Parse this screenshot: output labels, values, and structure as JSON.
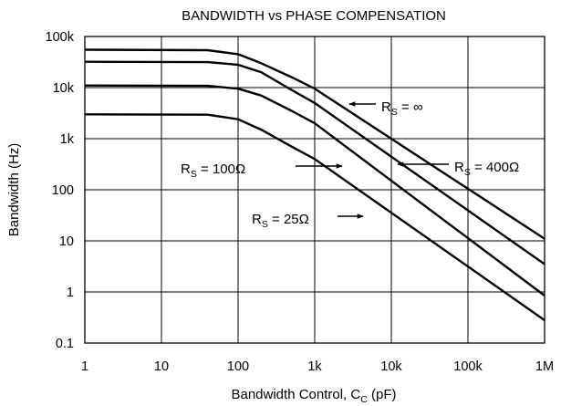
{
  "chart_data": {
    "type": "line",
    "title": "BANDWIDTH vs PHASE COMPENSATION",
    "xlabel": {
      "text": "Bandwidth Control, C",
      "sub": "C",
      "unit": " (pF)"
    },
    "ylabel": "Bandwidth (Hz)",
    "x_scale": "log",
    "y_scale": "log",
    "xlim": [
      1,
      1000000
    ],
    "ylim": [
      0.1,
      100000
    ],
    "grid": true,
    "xticks": [
      {
        "value": 1,
        "label": "1"
      },
      {
        "value": 10,
        "label": "10"
      },
      {
        "value": 100,
        "label": "100"
      },
      {
        "value": 1000,
        "label": "1k"
      },
      {
        "value": 10000,
        "label": "10k"
      },
      {
        "value": 100000,
        "label": "100k"
      },
      {
        "value": 1000000,
        "label": "1M"
      }
    ],
    "yticks": [
      {
        "value": 0.1,
        "label": "0.1"
      },
      {
        "value": 1,
        "label": "1"
      },
      {
        "value": 10,
        "label": "10"
      },
      {
        "value": 100,
        "label": "100"
      },
      {
        "value": 1000,
        "label": "1k"
      },
      {
        "value": 10000,
        "label": "10k"
      },
      {
        "value": 100000,
        "label": "100k"
      }
    ],
    "line_color": "#000000",
    "series": [
      {
        "name": "R_S = ∞",
        "points": [
          [
            1,
            55000
          ],
          [
            40,
            54000
          ],
          [
            100,
            45000
          ],
          [
            200,
            30000
          ],
          [
            500,
            16000
          ],
          [
            1000,
            9500
          ],
          [
            1000000,
            11
          ]
        ]
      },
      {
        "name": "R_S = 400Ω",
        "points": [
          [
            1,
            32000
          ],
          [
            40,
            31500
          ],
          [
            100,
            28000
          ],
          [
            200,
            20000
          ],
          [
            500,
            9000
          ],
          [
            1000,
            5000
          ],
          [
            1000000,
            3.5
          ]
        ]
      },
      {
        "name": "R_S = 100Ω",
        "points": [
          [
            1,
            11000
          ],
          [
            40,
            10800
          ],
          [
            100,
            9500
          ],
          [
            200,
            7000
          ],
          [
            500,
            3500
          ],
          [
            1000,
            2000
          ],
          [
            1000000,
            0.85
          ]
        ]
      },
      {
        "name": "R_S = 25Ω",
        "points": [
          [
            1,
            3000
          ],
          [
            40,
            2950
          ],
          [
            100,
            2400
          ],
          [
            200,
            1500
          ],
          [
            500,
            700
          ],
          [
            1000,
            400
          ],
          [
            1000000,
            0.28
          ]
        ]
      }
    ],
    "annotations": [
      {
        "id": "inf",
        "label": "R",
        "sub": "S",
        "rest": " = ∞",
        "arrow_dir": "left"
      },
      {
        "id": "r400",
        "label": "R",
        "sub": "S",
        "rest": " = 400Ω",
        "arrow_dir": "left"
      },
      {
        "id": "r100",
        "label": "R",
        "sub": "S",
        "rest": " = 100Ω",
        "arrow_dir": "right"
      },
      {
        "id": "r25",
        "label": "R",
        "sub": "S",
        "rest": " = 25Ω",
        "arrow_dir": "right"
      }
    ]
  }
}
